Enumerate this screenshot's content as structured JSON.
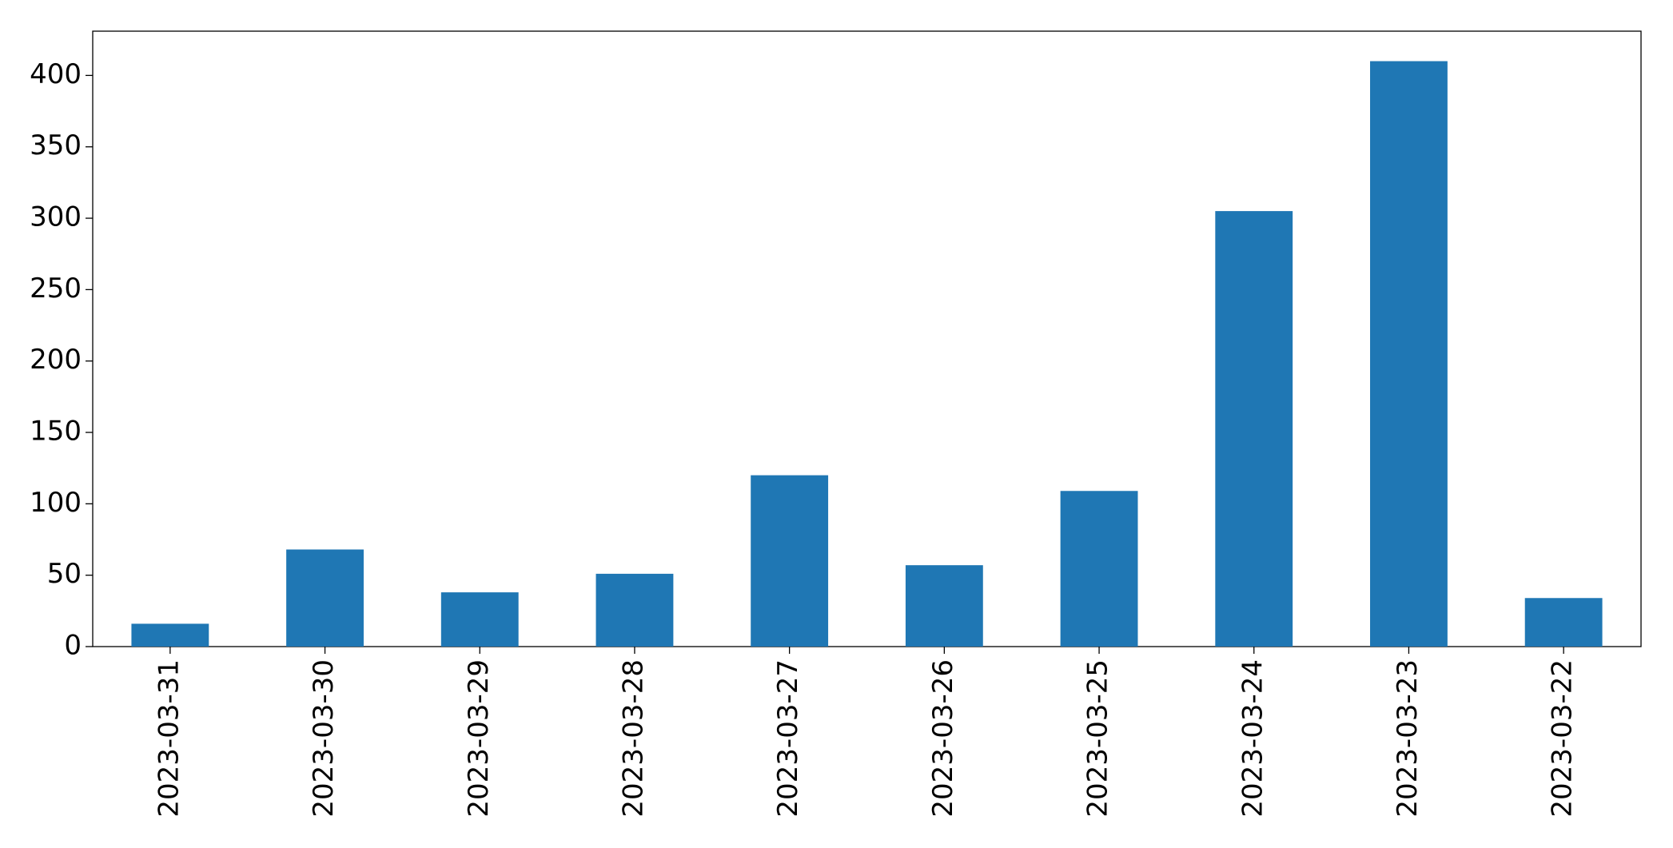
{
  "chart_data": {
    "type": "bar",
    "categories": [
      "2023-03-31",
      "2023-03-30",
      "2023-03-29",
      "2023-03-28",
      "2023-03-27",
      "2023-03-26",
      "2023-03-25",
      "2023-03-24",
      "2023-03-23",
      "2023-03-22"
    ],
    "values": [
      16,
      68,
      38,
      51,
      120,
      57,
      109,
      305,
      410,
      34
    ],
    "color": "#1f77b4",
    "ylim": [
      0,
      431
    ],
    "yticks": [
      0,
      50,
      100,
      150,
      200,
      250,
      300,
      350,
      400
    ],
    "grid": false
  }
}
